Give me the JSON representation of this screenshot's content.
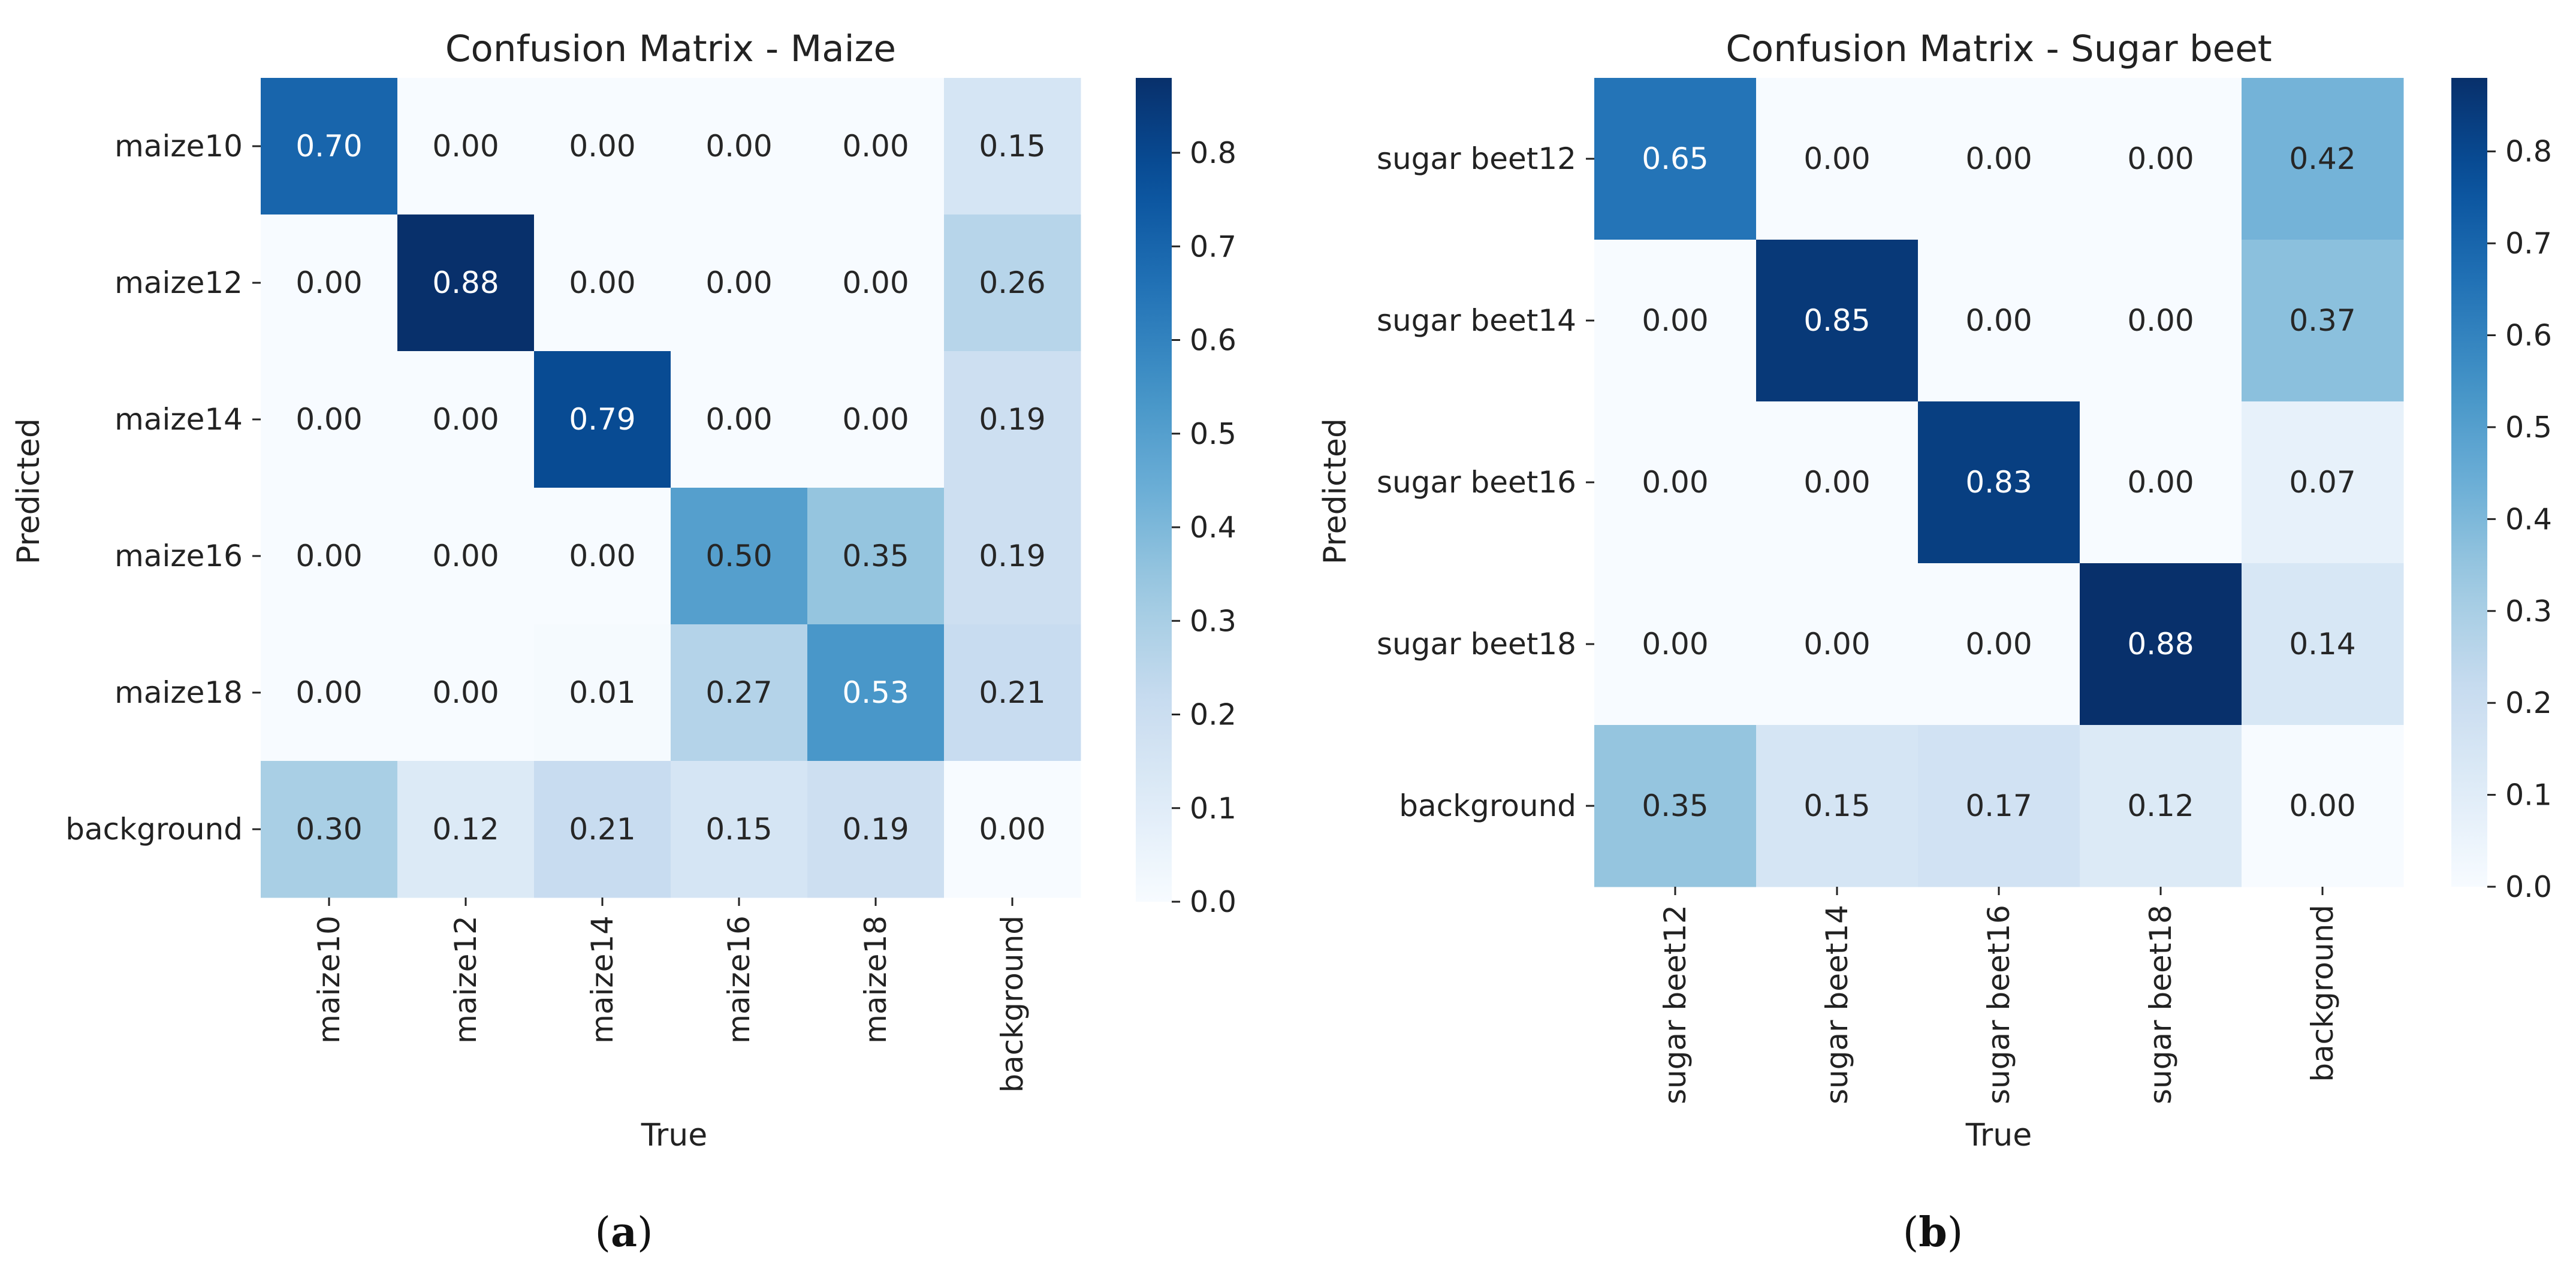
{
  "chart_data": [
    {
      "type": "heatmap",
      "title": "Confusion Matrix - Maize",
      "xlabel": "True",
      "ylabel": "Predicted",
      "x_categories": [
        "maize10",
        "maize12",
        "maize14",
        "maize16",
        "maize18",
        "background"
      ],
      "y_categories": [
        "maize10",
        "maize12",
        "maize14",
        "maize16",
        "maize18",
        "background"
      ],
      "values": [
        [
          0.7,
          0.0,
          0.0,
          0.0,
          0.0,
          0.15
        ],
        [
          0.0,
          0.88,
          0.0,
          0.0,
          0.0,
          0.26
        ],
        [
          0.0,
          0.0,
          0.79,
          0.0,
          0.0,
          0.19
        ],
        [
          0.0,
          0.0,
          0.0,
          0.5,
          0.35,
          0.19
        ],
        [
          0.0,
          0.0,
          0.01,
          0.27,
          0.53,
          0.21
        ],
        [
          0.3,
          0.12,
          0.21,
          0.15,
          0.19,
          0.0
        ]
      ],
      "colorbar": {
        "min": 0.0,
        "max": 0.88,
        "ticks": [
          "0.0",
          "0.1",
          "0.2",
          "0.3",
          "0.4",
          "0.5",
          "0.6",
          "0.7",
          "0.8"
        ],
        "colormap": "Blues"
      },
      "panel_label": [
        "(",
        "a",
        ")"
      ]
    },
    {
      "type": "heatmap",
      "title": "Confusion Matrix - Sugar beet",
      "xlabel": "True",
      "ylabel": "Predicted",
      "x_categories": [
        "sugar beet12",
        "sugar beet14",
        "sugar beet16",
        "sugar beet18",
        "background"
      ],
      "y_categories": [
        "sugar beet12",
        "sugar beet14",
        "sugar beet16",
        "sugar beet18",
        "background"
      ],
      "values": [
        [
          0.65,
          0.0,
          0.0,
          0.0,
          0.42
        ],
        [
          0.0,
          0.85,
          0.0,
          0.0,
          0.37
        ],
        [
          0.0,
          0.0,
          0.83,
          0.0,
          0.07
        ],
        [
          0.0,
          0.0,
          0.0,
          0.88,
          0.14
        ],
        [
          0.35,
          0.15,
          0.17,
          0.12,
          0.0
        ]
      ],
      "colorbar": {
        "min": 0.0,
        "max": 0.88,
        "ticks": [
          "0.0",
          "0.1",
          "0.2",
          "0.3",
          "0.4",
          "0.5",
          "0.6",
          "0.7",
          "0.8"
        ],
        "colormap": "Blues"
      },
      "panel_label": [
        "(",
        "b",
        ")"
      ]
    }
  ]
}
